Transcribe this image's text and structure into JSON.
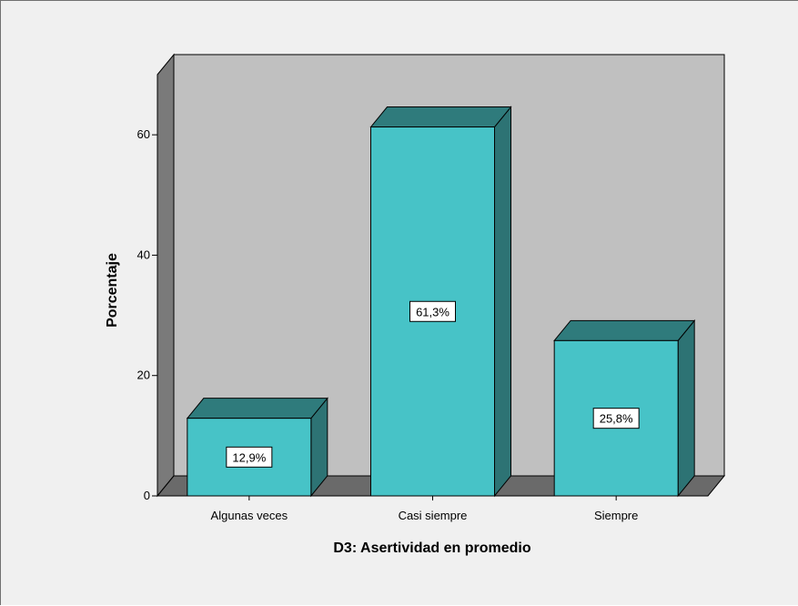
{
  "chart_data": {
    "type": "bar",
    "categories": [
      "Algunas veces",
      "Casi siempre",
      "Siempre"
    ],
    "values": [
      12.9,
      61.3,
      25.8
    ],
    "data_labels": [
      "12,9%",
      "61,3%",
      "25,8%"
    ],
    "xlabel": "D3: Asertividad en promedio",
    "ylabel": "Porcentaje",
    "ylim": [
      0,
      70
    ],
    "yticks": [
      0,
      20,
      40,
      60
    ],
    "ytick_labels": [
      "0",
      "20",
      "40",
      "60"
    ],
    "style": "3d",
    "grid": false,
    "colors": {
      "bar_front": "#47c3c7",
      "bar_top": "#2f7b7c",
      "bar_side": "#2d7374",
      "wall": "#c0c0c0",
      "side_wall": "#7a7a7a",
      "floor": "#6a6a6a",
      "background": "#f0f0f0"
    }
  }
}
